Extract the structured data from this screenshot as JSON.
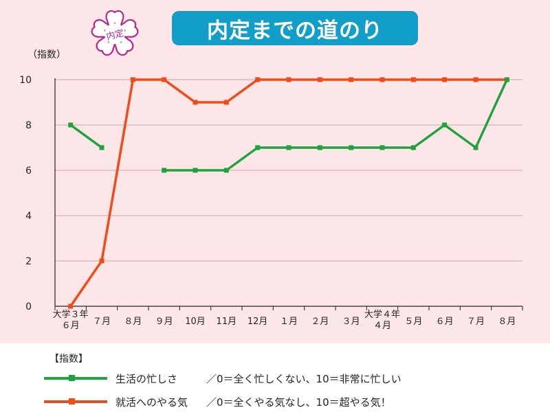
{
  "header": {
    "title": "内定までの道のり",
    "stamp_text": "内定"
  },
  "chart_data": {
    "type": "line",
    "title": "内定までの道のり",
    "ylabel": "（指数）",
    "xlabel": "",
    "ylim": [
      0,
      10
    ],
    "yticks": [
      "0",
      "2",
      "4",
      "6",
      "8",
      "10"
    ],
    "categories": [
      "大学３年\n６月",
      "７月",
      "８月",
      "９月",
      "10月",
      "11月",
      "12月",
      "１月",
      "２月",
      "３月",
      "大学４年\n４月",
      "５月",
      "６月",
      "７月",
      "８月"
    ],
    "grid": true,
    "series": [
      {
        "name": "生活の忙しさ",
        "color": "#1ea43c",
        "values": [
          8,
          7,
          null,
          6,
          6,
          6,
          7,
          7,
          7,
          7,
          7,
          7,
          8,
          7,
          10
        ]
      },
      {
        "name": "就活へのやる気",
        "color": "#f24b17",
        "values": [
          0,
          2,
          10,
          10,
          9,
          9,
          10,
          10,
          10,
          10,
          10,
          10,
          10,
          10,
          10
        ]
      }
    ]
  },
  "legend": {
    "heading": "【指数】",
    "items": [
      {
        "label": "生活の忙しさ",
        "description": "／0＝全く忙しくない、10＝非常に忙しい",
        "color": "#1ea43c"
      },
      {
        "label": "就活へのやる気",
        "description": "／0＝全くやる気なし、10＝超やる気！",
        "color": "#f24b17"
      }
    ]
  }
}
